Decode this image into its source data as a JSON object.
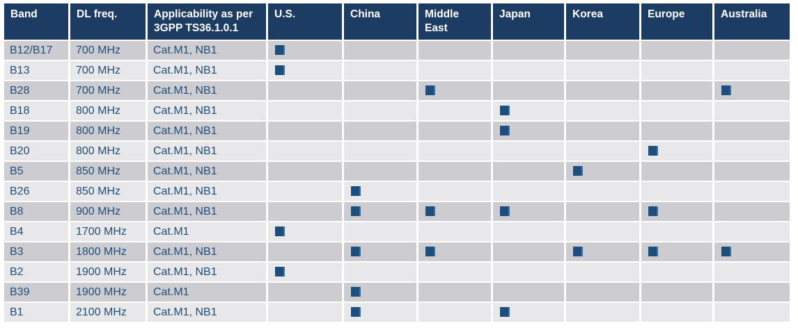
{
  "colors": {
    "header_bg": "#1C3C63",
    "header_text": "#FFFFFF",
    "row_alt_dark": "#CDCDD1",
    "row_alt_light": "#E8E8EA",
    "cell_text": "#1F4E79",
    "marker_fill": "#1F4E7B",
    "marker_edge": "#2E75B6"
  },
  "table": {
    "headers": [
      "Band",
      "DL freq.",
      "Applicability as per 3GPP TS36.1.0.1",
      "U.S.",
      "China",
      "Middle East",
      "Japan",
      "Korea",
      "Europe",
      "Australia"
    ],
    "region_keys": [
      "us",
      "china",
      "middle-east",
      "japan",
      "korea",
      "europe",
      "australia"
    ],
    "rows": [
      {
        "band": "B12/B17",
        "freq": "700 MHz",
        "applicability": "Cat.M1, NB1",
        "regions": [
          true,
          false,
          false,
          false,
          false,
          false,
          false
        ]
      },
      {
        "band": "B13",
        "freq": "700 MHz",
        "applicability": "Cat.M1, NB1",
        "regions": [
          true,
          false,
          false,
          false,
          false,
          false,
          false
        ]
      },
      {
        "band": "B28",
        "freq": "700 MHz",
        "applicability": "Cat.M1, NB1",
        "regions": [
          false,
          false,
          true,
          false,
          false,
          false,
          true
        ]
      },
      {
        "band": "B18",
        "freq": "800 MHz",
        "applicability": "Cat.M1, NB1",
        "regions": [
          false,
          false,
          false,
          true,
          false,
          false,
          false
        ]
      },
      {
        "band": "B19",
        "freq": "800 MHz",
        "applicability": "Cat.M1, NB1",
        "regions": [
          false,
          false,
          false,
          true,
          false,
          false,
          false
        ]
      },
      {
        "band": "B20",
        "freq": "800 MHz",
        "applicability": "Cat.M1, NB1",
        "regions": [
          false,
          false,
          false,
          false,
          false,
          true,
          false
        ]
      },
      {
        "band": "B5",
        "freq": "850 MHz",
        "applicability": "Cat.M1, NB1",
        "regions": [
          false,
          false,
          false,
          false,
          true,
          false,
          false
        ]
      },
      {
        "band": "B26",
        "freq": "850 MHz",
        "applicability": "Cat.M1, NB1",
        "regions": [
          false,
          true,
          false,
          false,
          false,
          false,
          false
        ]
      },
      {
        "band": "B8",
        "freq": "900 MHz",
        "applicability": "Cat.M1, NB1",
        "regions": [
          false,
          true,
          true,
          true,
          false,
          true,
          false
        ]
      },
      {
        "band": "B4",
        "freq": "1700 MHz",
        "applicability": "Cat.M1",
        "regions": [
          true,
          false,
          false,
          false,
          false,
          false,
          false
        ]
      },
      {
        "band": "B3",
        "freq": "1800 MHz",
        "applicability": "Cat.M1, NB1",
        "regions": [
          false,
          true,
          true,
          false,
          true,
          true,
          true
        ]
      },
      {
        "band": "B2",
        "freq": "1900 MHz",
        "applicability": "Cat.M1, NB1",
        "regions": [
          true,
          false,
          false,
          false,
          false,
          false,
          false
        ]
      },
      {
        "band": "B39",
        "freq": "1900 MHz",
        "applicability": "Cat.M1",
        "regions": [
          false,
          true,
          false,
          false,
          false,
          false,
          false
        ]
      },
      {
        "band": "B1",
        "freq": "2100 MHz",
        "applicability": "Cat.M1, NB1",
        "regions": [
          false,
          true,
          false,
          true,
          false,
          false,
          false
        ]
      }
    ]
  }
}
